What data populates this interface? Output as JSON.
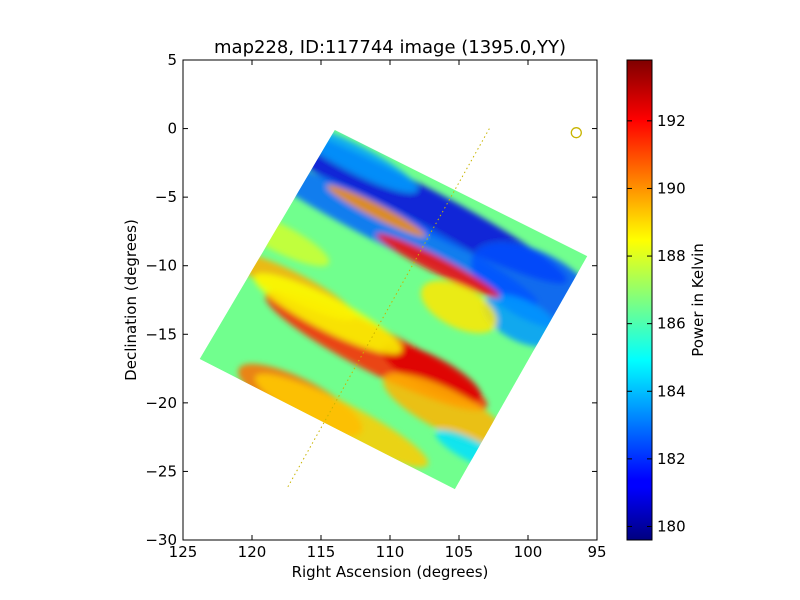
{
  "chart_data": {
    "type": "heatmap",
    "title": "map228, ID:117744 image (1395.0,YY)",
    "xlabel": "Right Ascension (degrees)",
    "ylabel": "Declination (degrees)",
    "xlim": [
      125,
      95
    ],
    "ylim": [
      -30,
      5
    ],
    "xticks": [
      "125",
      "120",
      "115",
      "110",
      "105",
      "100",
      "95"
    ],
    "yticks": [
      "5",
      "0",
      "−5",
      "−10",
      "−15",
      "−20",
      "−25",
      "−30"
    ],
    "colorbar": {
      "label": "Power in Kelvin",
      "range": [
        179.6,
        193.8
      ],
      "ticks": [
        "180",
        "182",
        "184",
        "186",
        "188",
        "190",
        "192"
      ],
      "colormap": "jet"
    },
    "map_footprint_corners": [
      [
        114.0,
        -0.1
      ],
      [
        95.7,
        -9.3
      ],
      [
        105.3,
        -26.3
      ],
      [
        123.8,
        -16.8
      ]
    ],
    "background_level": 186.5,
    "bands": [
      {
        "ra": 108.8,
        "dec": -5.2,
        "ra_halfwidth": 13,
        "dec_halfwidth": 1.5,
        "value": 181.0
      },
      {
        "ra": 110.0,
        "dec": -7.3,
        "ra_halfwidth": 12,
        "dec_halfwidth": 1.3,
        "value": 182.8
      },
      {
        "ra": 112.5,
        "dec": -2.2,
        "ra_halfwidth": 5,
        "dec_halfwidth": 1.0,
        "value": 183.6
      },
      {
        "ra": 99.5,
        "dec": -11.5,
        "ra_halfwidth": 5,
        "dec_halfwidth": 2.5,
        "value": 182.5
      },
      {
        "ra": 100.5,
        "dec": -14.0,
        "ra_halfwidth": 3,
        "dec_halfwidth": 1.5,
        "value": 183.5
      },
      {
        "ra": 111.0,
        "dec": -16.2,
        "ra_halfwidth": 9,
        "dec_halfwidth": 1.6,
        "value": 191.5
      },
      {
        "ra": 107.0,
        "dec": -17.8,
        "ra_halfwidth": 4,
        "dec_halfwidth": 1.2,
        "value": 192.5
      },
      {
        "ra": 106.5,
        "dec": -10.0,
        "ra_halfwidth": 5,
        "dec_halfwidth": 0.6,
        "value": 191.8
      },
      {
        "ra": 111.0,
        "dec": -6.0,
        "ra_halfwidth": 4,
        "dec_halfwidth": 0.5,
        "value": 190.0
      },
      {
        "ra": 116.5,
        "dec": -19.8,
        "ra_halfwidth": 5,
        "dec_halfwidth": 1.5,
        "value": 190.5
      },
      {
        "ra": 113.5,
        "dec": -21.3,
        "ra_halfwidth": 7,
        "dec_halfwidth": 1.3,
        "value": 189.2
      },
      {
        "ra": 117.0,
        "dec": -11.5,
        "ra_halfwidth": 5,
        "dec_halfwidth": 1.0,
        "value": 189.6
      },
      {
        "ra": 106.0,
        "dec": -20.5,
        "ra_halfwidth": 5,
        "dec_halfwidth": 1.5,
        "value": 189.5
      },
      {
        "ra": 104.0,
        "dec": -23.5,
        "ra_halfwidth": 3,
        "dec_halfwidth": 0.8,
        "value": 184.5
      },
      {
        "ra": 118.0,
        "dec": -8.0,
        "ra_halfwidth": 4,
        "dec_halfwidth": 1.0,
        "value": 187.8
      },
      {
        "ra": 105.0,
        "dec": -13.0,
        "ra_halfwidth": 3,
        "dec_halfwidth": 1.5,
        "value": 188.8
      },
      {
        "ra": 114.5,
        "dec": -13.5,
        "ra_halfwidth": 6,
        "dec_halfwidth": 1.2,
        "value": 188.4
      }
    ],
    "dotted_line": [
      [
        102.8,
        0.0
      ],
      [
        117.5,
        -26.3
      ]
    ],
    "marker_circle": {
      "ra": 96.5,
      "dec": -0.3
    }
  }
}
